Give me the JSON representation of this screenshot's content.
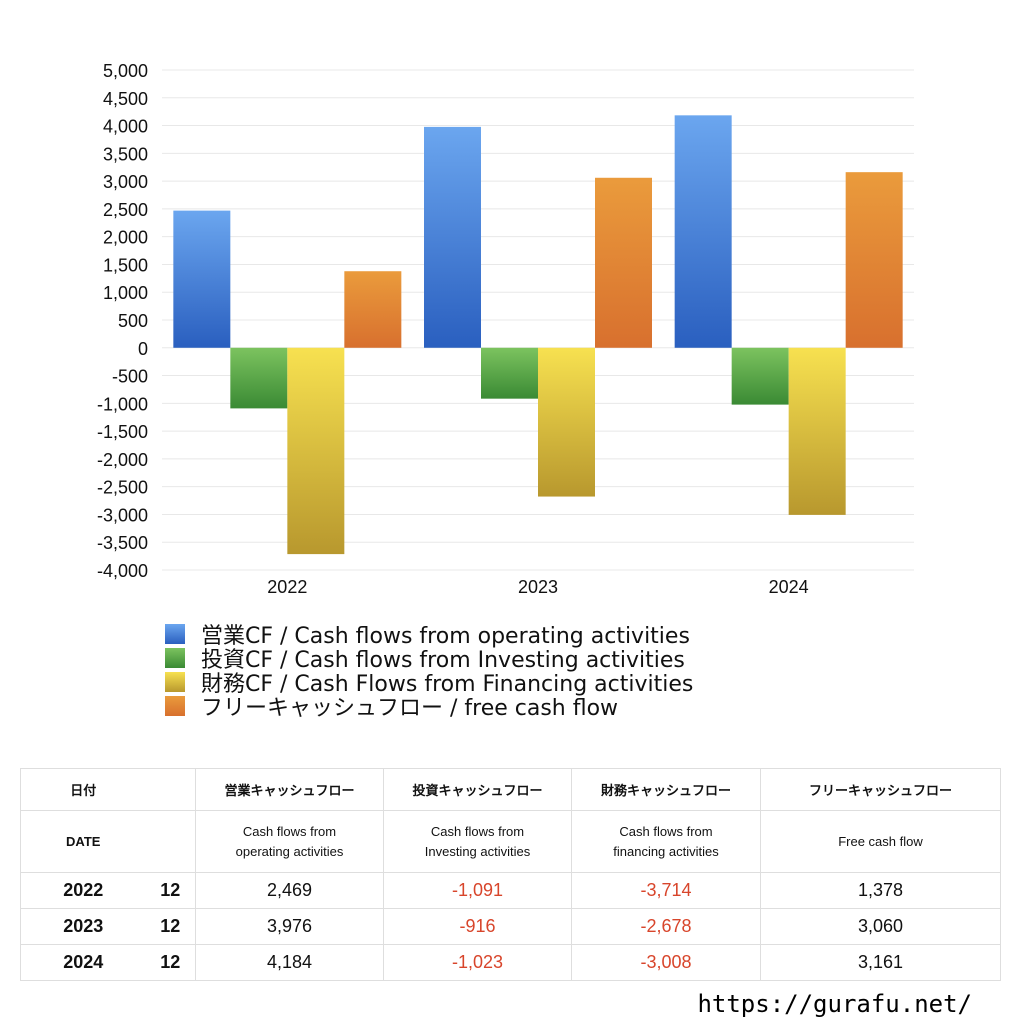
{
  "chart_data": {
    "type": "bar",
    "categories": [
      "2022",
      "2023",
      "2024"
    ],
    "series": [
      {
        "name": "営業CF / Cash flows from operating activities",
        "values": [
          2469,
          3976,
          4184
        ],
        "color_top": "#6ba6ef",
        "color_bottom": "#2a5fbf"
      },
      {
        "name": "投資CF / Cash flows from Investing activities",
        "values": [
          -1091,
          -916,
          -1023
        ],
        "color_top": "#7cc35f",
        "color_bottom": "#3a8a34"
      },
      {
        "name": "財務CF / Cash Flows from Financing activities",
        "values": [
          -3714,
          -2678,
          -3008
        ],
        "color_top": "#f7e150",
        "color_bottom": "#b8982e"
      },
      {
        "name": "フリーキャッシュフロー / free cash flow",
        "values": [
          1378,
          3060,
          3161
        ],
        "color_top": "#ea9b3c",
        "color_bottom": "#d8702e"
      }
    ],
    "ylim": [
      -4000,
      5000
    ],
    "yticks": [
      5000,
      4500,
      4000,
      3500,
      3000,
      2500,
      2000,
      1500,
      1000,
      500,
      0,
      -500,
      -1000,
      -1500,
      -2000,
      -2500,
      -3000,
      -3500,
      -4000
    ],
    "ytick_labels": [
      "5,000",
      "4,500",
      "4,000",
      "3,500",
      "3,000",
      "2,500",
      "2,000",
      "1,500",
      "1,000",
      "500",
      "0",
      "-500",
      "-1,000",
      "-1,500",
      "-2,000",
      "-2,500",
      "-3,000",
      "-3,500",
      "-4,000"
    ],
    "grid": true,
    "legend_position": "bottom-left",
    "title": "",
    "xlabel": "",
    "ylabel": ""
  },
  "table": {
    "headers": {
      "date_jp": "日付",
      "operating_jp": "営業キャッシュフロー",
      "investing_jp": "投資キャッシュフロー",
      "financing_jp": "財務キャッシュフロー",
      "free_jp": "フリーキャッシュフロー",
      "date_en": "DATE",
      "operating_en_1": "Cash flows from",
      "operating_en_2": "operating activities",
      "investing_en_1": "Cash flows from",
      "investing_en_2": "Investing activities",
      "financing_en_1": "Cash flows from",
      "financing_en_2": "financing activities",
      "free_en": "Free cash flow"
    },
    "rows": [
      {
        "year": "2022",
        "month": "12",
        "operating": "2,469",
        "investing": "-1,091",
        "financing": "-3,714",
        "free": "1,378"
      },
      {
        "year": "2023",
        "month": "12",
        "operating": "3,976",
        "investing": "-916",
        "financing": "-2,678",
        "free": "3,060"
      },
      {
        "year": "2024",
        "month": "12",
        "operating": "4,184",
        "investing": "-1,023",
        "financing": "-3,008",
        "free": "3,161"
      }
    ],
    "negative_color": "#d8452b"
  },
  "footer": {
    "url": "https://gurafu.net/"
  }
}
